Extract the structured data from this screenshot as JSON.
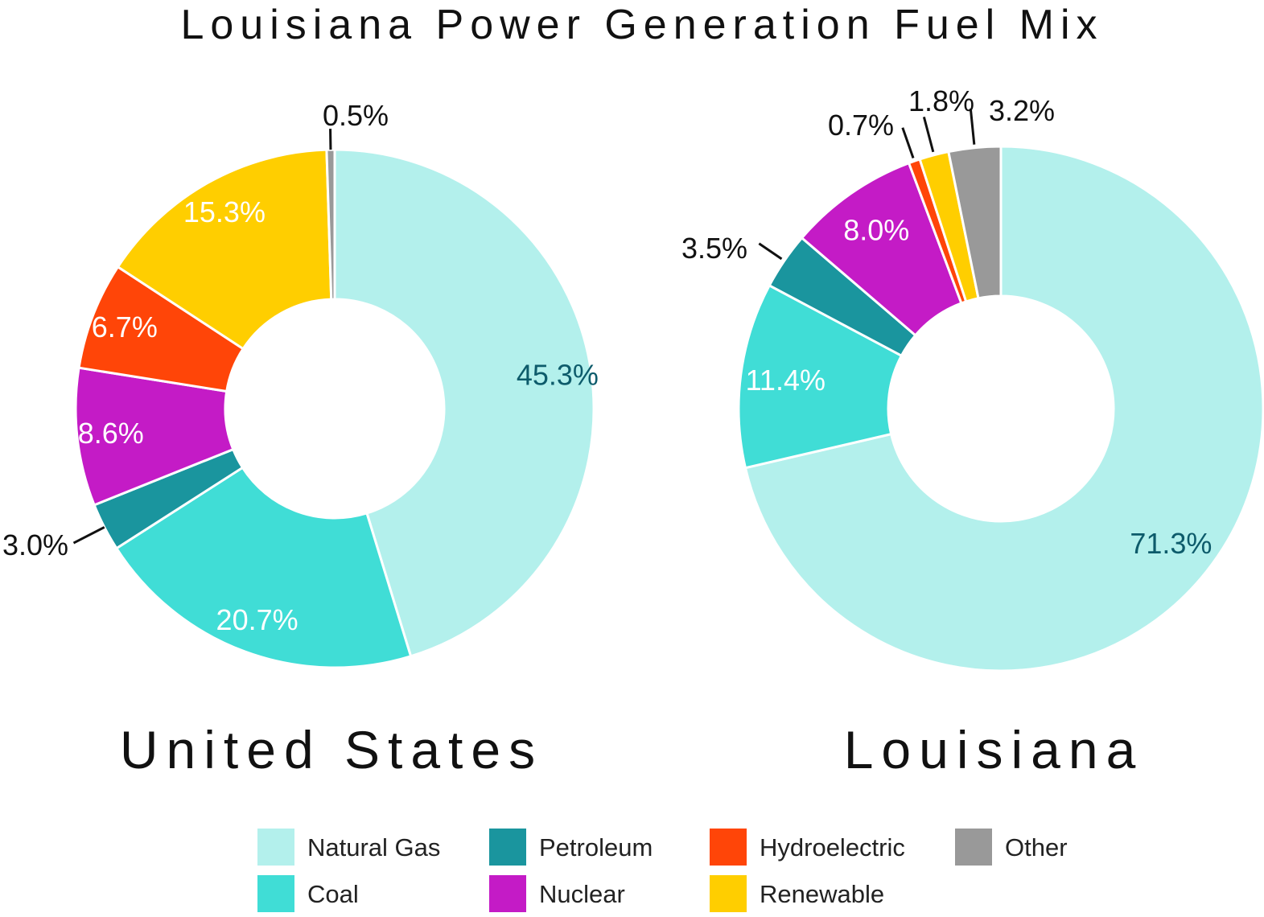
{
  "title": "Louisiana Power Generation Fuel Mix",
  "legend": [
    {
      "name": "Natural Gas",
      "color": "#b3f0ec"
    },
    {
      "name": "Coal",
      "color": "#40ddd6"
    },
    {
      "name": "Petroleum",
      "color": "#1a959e"
    },
    {
      "name": "Nuclear",
      "color": "#c41bc6"
    },
    {
      "name": "Hydroelectric",
      "color": "#ff4508"
    },
    {
      "name": "Renewable",
      "color": "#ffce00"
    },
    {
      "name": "Other",
      "color": "#999999"
    }
  ],
  "chart_data": [
    {
      "type": "pie",
      "title": "United States",
      "slices": [
        {
          "category": "Natural Gas",
          "value": 45.3,
          "label": "45.3%"
        },
        {
          "category": "Coal",
          "value": 20.7,
          "label": "20.7%"
        },
        {
          "category": "Petroleum",
          "value": 3.0,
          "label": "3.0%"
        },
        {
          "category": "Nuclear",
          "value": 8.6,
          "label": "8.6%"
        },
        {
          "category": "Hydroelectric",
          "value": 6.7,
          "label": "6.7%"
        },
        {
          "category": "Renewable",
          "value": 15.3,
          "label": "15.3%"
        },
        {
          "category": "Other",
          "value": 0.5,
          "label": "0.5%"
        }
      ]
    },
    {
      "type": "pie",
      "title": "Louisiana",
      "slices": [
        {
          "category": "Natural Gas",
          "value": 71.3,
          "label": "71.3%"
        },
        {
          "category": "Coal",
          "value": 11.4,
          "label": "11.4%"
        },
        {
          "category": "Petroleum",
          "value": 3.5,
          "label": "3.5%"
        },
        {
          "category": "Nuclear",
          "value": 8.0,
          "label": "8.0%"
        },
        {
          "category": "Hydroelectric",
          "value": 0.7,
          "label": "0.7%"
        },
        {
          "category": "Renewable",
          "value": 1.8,
          "label": "1.8%"
        },
        {
          "category": "Other",
          "value": 3.2,
          "label": "3.2%"
        }
      ]
    }
  ]
}
